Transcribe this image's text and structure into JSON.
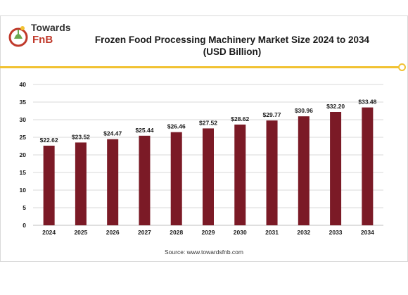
{
  "logo": {
    "line1": "Towards",
    "line2": "FnB"
  },
  "source": "Source: www.towardsfnb.com",
  "colors": {
    "bar": "#7b1a26",
    "accent": "#f1c232",
    "grid": "#d9d9d9",
    "text": "#1a1a1a"
  },
  "chart_data": {
    "type": "bar",
    "title": "Frozen Food Processing Machinery Market Size 2024 to 2034",
    "subtitle": "(USD Billion)",
    "xlabel": "",
    "ylabel": "",
    "categories": [
      "2024",
      "2025",
      "2026",
      "2027",
      "2028",
      "2029",
      "2030",
      "2031",
      "2032",
      "2033",
      "2034"
    ],
    "values": [
      22.62,
      23.52,
      24.47,
      25.44,
      26.46,
      27.52,
      28.62,
      29.77,
      30.96,
      32.2,
      33.48
    ],
    "labels": [
      "$22.62",
      "$23.52",
      "$24.47",
      "$25.44",
      "$26.46",
      "$27.52",
      "$28.62",
      "$29.77",
      "$30.96",
      "$32.20",
      "$33.48"
    ],
    "ylim": [
      0,
      40
    ],
    "yticks": [
      "0",
      "5",
      "10",
      "15",
      "20",
      "25",
      "30",
      "35",
      "40"
    ],
    "grid": true,
    "legend": "none"
  }
}
